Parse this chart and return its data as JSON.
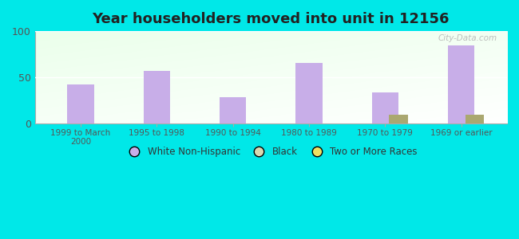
{
  "title": "Year householders moved into unit in 12156",
  "categories": [
    "1999 to March\n2000",
    "1995 to 1998",
    "1990 to 1994",
    "1980 to 1989",
    "1970 to 1979",
    "1969 or earlier"
  ],
  "white_non_hispanic": [
    42,
    57,
    28,
    65,
    33,
    84
  ],
  "black": [
    0,
    0,
    0,
    0,
    0,
    0
  ],
  "two_or_more_races": [
    0,
    0,
    0,
    0,
    9,
    9
  ],
  "bar_width": 0.35,
  "white_color": "#c8aee8",
  "black_color": "#d8d8b0",
  "two_or_more_color": "#f0e060",
  "two_or_more_color_bar": "#aaa870",
  "ylim": [
    0,
    100
  ],
  "yticks": [
    0,
    50,
    100
  ],
  "bg_color": "#00e8e8",
  "plot_bg_top_left": "#e8f5e0",
  "plot_bg_bottom_right": "#f5fff5",
  "watermark": "City-Data.com"
}
